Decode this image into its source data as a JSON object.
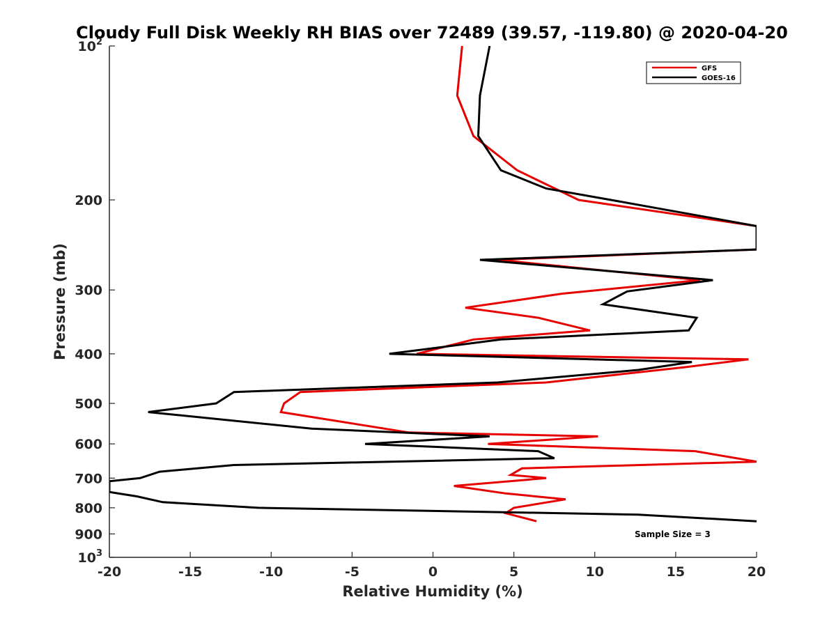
{
  "chart_data": {
    "type": "line",
    "title": "Cloudy Full Disk Weekly RH BIAS over 72489 (39.57, -119.80) @ 2020-04-20",
    "xlabel": "Relative Humidity (%)",
    "ylabel": "Pressure (mb)",
    "xlim": [
      -20,
      20
    ],
    "ylim": [
      100,
      1000
    ],
    "yscale": "log",
    "y_reversed": true,
    "grid": false,
    "x_ticks": [
      "-20",
      "-15",
      "-10",
      "-5",
      "0",
      "5",
      "10",
      "15",
      "20"
    ],
    "y_ticks": [
      {
        "value": 100,
        "base": "10",
        "exp": "2"
      },
      {
        "value": 200,
        "label": "200"
      },
      {
        "value": 300,
        "label": "300"
      },
      {
        "value": 400,
        "label": "400"
      },
      {
        "value": 500,
        "label": "500"
      },
      {
        "value": 600,
        "label": "600"
      },
      {
        "value": 700,
        "label": "700"
      },
      {
        "value": 800,
        "label": "800"
      },
      {
        "value": 900,
        "label": "900"
      },
      {
        "value": 1000,
        "base": "10",
        "exp": "3"
      }
    ],
    "legend_position": "top-right",
    "annotation": "Sample Size = 3",
    "series": [
      {
        "name": "GFS",
        "color": "#e60000",
        "points": [
          [
            1.8,
            100
          ],
          [
            1.5,
            125
          ],
          [
            2.5,
            150
          ],
          [
            5.2,
            175
          ],
          [
            9.0,
            200
          ],
          [
            20.0,
            225
          ],
          [
            20.0,
            250
          ],
          [
            4.0,
            262
          ],
          [
            16.5,
            287
          ],
          [
            8.0,
            305
          ],
          [
            2.0,
            325
          ],
          [
            6.5,
            340
          ],
          [
            9.7,
            360
          ],
          [
            2.5,
            375
          ],
          [
            -1.0,
            400
          ],
          [
            19.5,
            410
          ],
          [
            15.5,
            425
          ],
          [
            7.0,
            455
          ],
          [
            -8.2,
            475
          ],
          [
            -9.2,
            500
          ],
          [
            -9.4,
            520
          ],
          [
            -1.5,
            570
          ],
          [
            10.2,
            580
          ],
          [
            3.4,
            600
          ],
          [
            16.2,
            620
          ],
          [
            20.0,
            650
          ],
          [
            5.5,
            670
          ],
          [
            4.8,
            690
          ],
          [
            7.0,
            700
          ],
          [
            1.3,
            725
          ],
          [
            4.5,
            750
          ],
          [
            8.2,
            770
          ],
          [
            5.0,
            800
          ],
          [
            4.5,
            820
          ],
          [
            6.4,
            850
          ]
        ]
      },
      {
        "name": "GOES-16",
        "color": "#000000",
        "points": [
          [
            3.5,
            100
          ],
          [
            2.9,
            125
          ],
          [
            2.8,
            150
          ],
          [
            4.2,
            175
          ],
          [
            7.0,
            190
          ],
          [
            11.0,
            200
          ],
          [
            20.0,
            225
          ],
          [
            20.0,
            250
          ],
          [
            2.9,
            262
          ],
          [
            17.3,
            287
          ],
          [
            12.0,
            302
          ],
          [
            10.5,
            320
          ],
          [
            16.3,
            340
          ],
          [
            15.8,
            360
          ],
          [
            4.2,
            375
          ],
          [
            -2.7,
            400
          ],
          [
            16.0,
            415
          ],
          [
            12.7,
            430
          ],
          [
            4.0,
            455
          ],
          [
            -12.3,
            475
          ],
          [
            -13.4,
            500
          ],
          [
            -17.6,
            520
          ],
          [
            -7.5,
            560
          ],
          [
            3.5,
            580
          ],
          [
            -4.2,
            600
          ],
          [
            6.5,
            620
          ],
          [
            7.5,
            640
          ],
          [
            -12.3,
            660
          ],
          [
            -16.9,
            680
          ],
          [
            -18.1,
            700
          ],
          [
            -20.0,
            710
          ],
          [
            -20.0,
            745
          ],
          [
            -18.3,
            760
          ],
          [
            -16.7,
            780
          ],
          [
            -10.8,
            800
          ],
          [
            12.7,
            825
          ],
          [
            20.0,
            850
          ]
        ]
      }
    ]
  }
}
